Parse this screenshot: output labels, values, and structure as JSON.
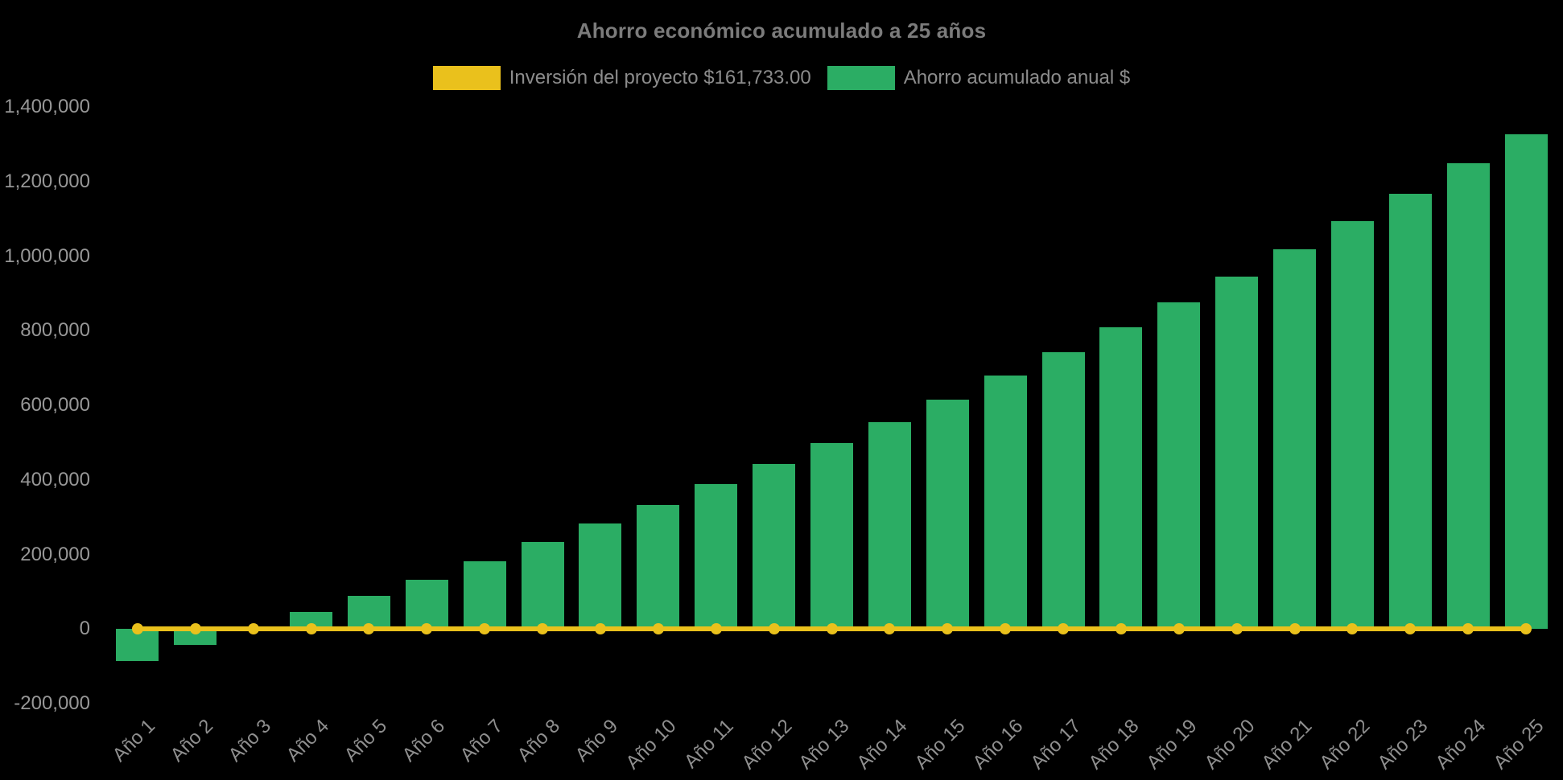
{
  "chart_data": {
    "type": "bar",
    "title": "Ahorro económico acumulado a 25 años",
    "background_color": "#000000",
    "categories": [
      "Año 1",
      "Año 2",
      "Año 3",
      "Año 4",
      "Año 5",
      "Año 6",
      "Año 7",
      "Año 8",
      "Año 9",
      "Año 10",
      "Año 11",
      "Año 12",
      "Año 13",
      "Año 14",
      "Año 15",
      "Año 16",
      "Año 17",
      "Año 18",
      "Año 19",
      "Año 20",
      "Año 21",
      "Año 22",
      "Año 23",
      "Año 24",
      "Año 25"
    ],
    "series": [
      {
        "name": "Inversión del proyecto $161,733.00",
        "type": "line",
        "color": "#EAC11C",
        "values": [
          0,
          0,
          0,
          0,
          0,
          0,
          0,
          0,
          0,
          0,
          0,
          0,
          0,
          0,
          0,
          0,
          0,
          0,
          0,
          0,
          0,
          0,
          0,
          0,
          0
        ]
      },
      {
        "name": "Ahorro acumulado anual $",
        "type": "bar",
        "color": "#2BAD64",
        "values": [
          -85000,
          -43000,
          0,
          45000,
          88000,
          133000,
          181000,
          234000,
          283000,
          333000,
          388000,
          443000,
          499000,
          555000,
          616000,
          680000,
          743000,
          810000,
          875000,
          944000,
          1018000,
          1093000,
          1168000,
          1248000,
          1327000
        ]
      }
    ],
    "ylim": [
      -200000,
      1400000
    ],
    "y_ticks": [
      {
        "value": -200000,
        "label": "-200,000"
      },
      {
        "value": 0,
        "label": "0"
      },
      {
        "value": 200000,
        "label": "200,000"
      },
      {
        "value": 400000,
        "label": "400,000"
      },
      {
        "value": 600000,
        "label": "600,000"
      },
      {
        "value": 800000,
        "label": "800,000"
      },
      {
        "value": 1000000,
        "label": "1,000,000"
      },
      {
        "value": 1200000,
        "label": "1,200,000"
      },
      {
        "value": 1400000,
        "label": "1,400,000"
      }
    ],
    "grid": false,
    "legend_position": "top",
    "axis_text_color": "#979797"
  }
}
